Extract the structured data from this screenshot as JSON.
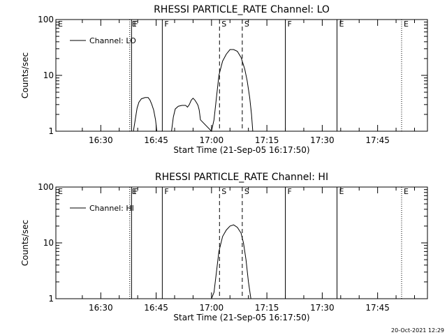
{
  "chart_data": [
    {
      "type": "line",
      "title": "RHESSI PARTICLE_RATE Channel: LO",
      "xlabel": "Start Time (21-Sep-05 16:17:50)",
      "ylabel": "Counts/sec",
      "yscale": "log",
      "xlim": [
        "16:17:50",
        "17:58:30"
      ],
      "ylim": [
        1,
        100
      ],
      "x_ticks": [
        "16:30",
        "16:45",
        "17:00",
        "17:15",
        "17:30",
        "17:45"
      ],
      "y_ticks": [
        "1",
        "10",
        "100"
      ],
      "legend": {
        "position": "top-left",
        "entries": [
          "Channel: LO"
        ]
      },
      "series": [
        {
          "name": "Channel: LO",
          "x": [
            "16:38:50",
            "16:39:20",
            "16:39:50",
            "16:40:20",
            "16:41:00",
            "16:42:00",
            "16:42:50",
            "16:43:20",
            "16:43:50",
            "16:44:20",
            "16:44:50",
            "16:45:10",
            "16:49:10",
            "16:49:40",
            "16:50:10",
            "16:51:00",
            "16:52:00",
            "16:53:00",
            "16:53:30",
            "16:54:00",
            "16:54:30",
            "16:55:00",
            "16:55:30",
            "16:56:00",
            "16:56:20",
            "16:56:40",
            "16:57:00",
            "17:00:00",
            "17:00:40",
            "17:01:20",
            "17:02:00",
            "17:03:00",
            "17:04:00",
            "17:05:00",
            "17:06:00",
            "17:07:00",
            "17:08:00",
            "17:09:00",
            "17:09:40",
            "17:10:20",
            "17:10:50",
            "17:11:10"
          ],
          "y": [
            1,
            1.6,
            2.6,
            3.3,
            3.8,
            4.0,
            4.0,
            3.6,
            3.0,
            2.4,
            1.6,
            1,
            1,
            1.8,
            2.5,
            2.8,
            2.9,
            2.9,
            2.7,
            3.0,
            3.6,
            3.9,
            3.6,
            3.2,
            2.9,
            2.4,
            1.6,
            1,
            1.6,
            4,
            10,
            18,
            24,
            29,
            29,
            27,
            21,
            13,
            8,
            4,
            2,
            1
          ]
        }
      ],
      "annotations": [
        {
          "label": "E",
          "time": "16:17:50",
          "style": "dotted"
        },
        {
          "label": "E",
          "time": "16:37:50",
          "style": "dotted"
        },
        {
          "label": "F",
          "time": "16:38:20",
          "style": "solid"
        },
        {
          "label": "F",
          "time": "16:46:40",
          "style": "solid"
        },
        {
          "label": "S",
          "time": "17:02:10",
          "style": "dashed"
        },
        {
          "label": "S",
          "time": "17:08:20",
          "style": "dashed"
        },
        {
          "label": "F",
          "time": "17:20:00",
          "style": "solid"
        },
        {
          "label": "E",
          "time": "17:34:00",
          "style": "solid"
        },
        {
          "label": "E",
          "time": "17:51:30",
          "style": "dotted"
        }
      ]
    },
    {
      "type": "line",
      "title": "RHESSI PARTICLE_RATE Channel: HI",
      "xlabel": "Start Time (21-Sep-05 16:17:50)",
      "ylabel": "Counts/sec",
      "yscale": "log",
      "xlim": [
        "16:17:50",
        "17:58:30"
      ],
      "ylim": [
        1,
        100
      ],
      "x_ticks": [
        "16:30",
        "16:45",
        "17:00",
        "17:15",
        "17:30",
        "17:45"
      ],
      "y_ticks": [
        "1",
        "10",
        "100"
      ],
      "legend": {
        "position": "top-left",
        "entries": [
          "Channel: HI"
        ]
      },
      "series": [
        {
          "name": "Channel: HI",
          "x": [
            "17:00:00",
            "17:00:40",
            "17:01:20",
            "17:02:00",
            "17:03:00",
            "17:04:00",
            "17:05:00",
            "17:06:00",
            "17:07:00",
            "17:08:00",
            "17:08:40",
            "17:09:20",
            "17:10:00",
            "17:10:40"
          ],
          "y": [
            1,
            1.3,
            3,
            7,
            13,
            17,
            20,
            21,
            19,
            15,
            10,
            5,
            2,
            1
          ]
        }
      ],
      "annotations": [
        {
          "label": "E",
          "time": "16:17:50",
          "style": "dotted"
        },
        {
          "label": "E",
          "time": "16:37:50",
          "style": "dotted"
        },
        {
          "label": "F",
          "time": "16:38:20",
          "style": "solid"
        },
        {
          "label": "F",
          "time": "16:46:40",
          "style": "solid"
        },
        {
          "label": "S",
          "time": "17:02:10",
          "style": "dashed"
        },
        {
          "label": "S",
          "time": "17:08:20",
          "style": "dashed"
        },
        {
          "label": "F",
          "time": "17:20:00",
          "style": "solid"
        },
        {
          "label": "E",
          "time": "17:34:00",
          "style": "solid"
        },
        {
          "label": "E",
          "time": "17:51:30",
          "style": "dotted"
        }
      ]
    }
  ],
  "footer": {
    "timestamp": "20-Oct-2021 12:29"
  }
}
